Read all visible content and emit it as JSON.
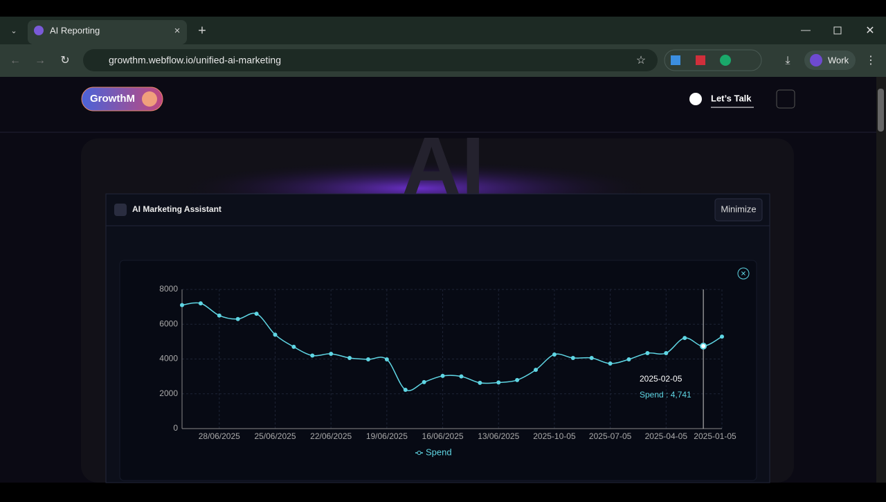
{
  "browser": {
    "tab_title": "AI Reporting",
    "url": "growthm.webflow.io/unified-ai-marketing",
    "profile": "Work"
  },
  "site": {
    "logo": "GrowthM",
    "cta": "Let’s Talk",
    "hero_text": "AI",
    "panel_title": "AI Marketing Assistant",
    "panel_button": "Minimize"
  },
  "chart_data": {
    "type": "line",
    "categories": [
      null,
      null,
      "28/06/2025",
      null,
      null,
      "25/06/2025",
      null,
      null,
      "22/06/2025",
      null,
      null,
      "19/06/2025",
      null,
      null,
      "16/06/2025",
      null,
      null,
      "13/06/2025",
      null,
      null,
      "2025-10-05",
      null,
      null,
      "2025-07-05",
      null,
      null,
      "2025-04-05",
      null,
      null,
      "2025-01-05"
    ],
    "series": [
      {
        "name": "Spend",
        "color": "#5fd6e4",
        "values": [
          7100,
          7200,
          6500,
          6300,
          6600,
          5400,
          4700,
          4200,
          4300,
          4060,
          3980,
          3980,
          2230,
          2670,
          3030,
          3000,
          2630,
          2650,
          2790,
          3380,
          4260,
          4060,
          4060,
          3740,
          3980,
          4340,
          4340,
          5210,
          4741,
          5290
        ]
      }
    ],
    "ylim": [
      0,
      8000
    ],
    "yticks": [
      0,
      2000,
      4000,
      6000,
      8000
    ],
    "grid": true,
    "legend": "bottom",
    "tooltip": {
      "index": 28,
      "x": "2025-02-05",
      "text": "Spend : 4,741"
    }
  }
}
